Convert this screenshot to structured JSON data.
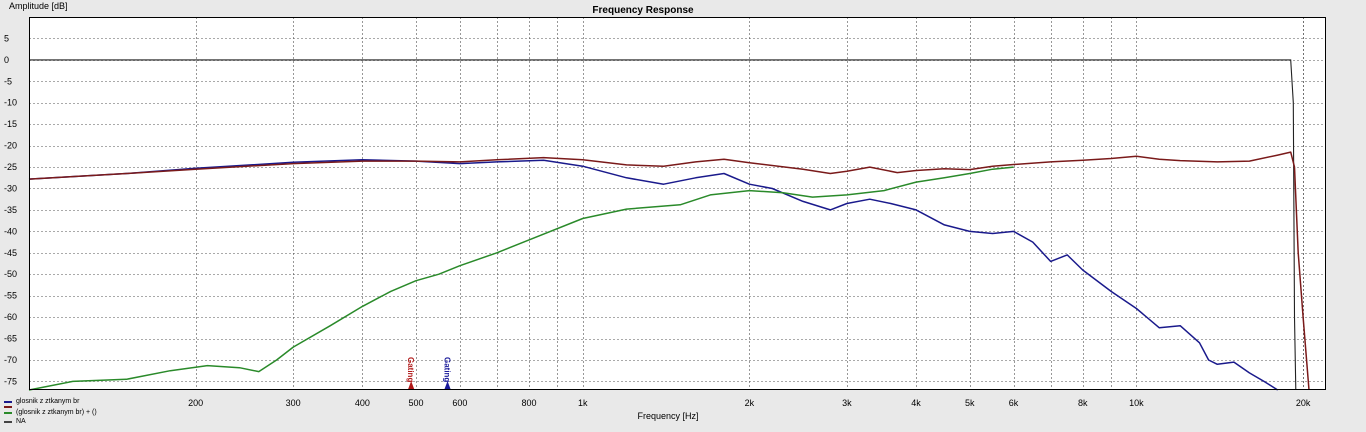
{
  "chart_data": {
    "type": "line",
    "title": "Frequency Response",
    "xlabel": "Frequency [Hz]",
    "ylabel": "Amplitude [dB]",
    "x_scale": "log",
    "xlim": [
      100,
      22000
    ],
    "ylim": [
      -77,
      10
    ],
    "x_ticks": [
      {
        "value": 200,
        "label": "200"
      },
      {
        "value": 300,
        "label": "300"
      },
      {
        "value": 400,
        "label": "400"
      },
      {
        "value": 500,
        "label": "500"
      },
      {
        "value": 600,
        "label": "600"
      },
      {
        "value": 800,
        "label": "800"
      },
      {
        "value": 1000,
        "label": "1k"
      },
      {
        "value": 2000,
        "label": "2k"
      },
      {
        "value": 3000,
        "label": "3k"
      },
      {
        "value": 4000,
        "label": "4k"
      },
      {
        "value": 5000,
        "label": "5k"
      },
      {
        "value": 6000,
        "label": "6k"
      },
      {
        "value": 8000,
        "label": "8k"
      },
      {
        "value": 10000,
        "label": "10k"
      },
      {
        "value": 20000,
        "label": "20k"
      }
    ],
    "y_ticks": [
      5,
      0,
      -5,
      -10,
      -15,
      -20,
      -25,
      -30,
      -35,
      -40,
      -45,
      -50,
      -55,
      -60,
      -65,
      -70,
      -75
    ],
    "grid": true,
    "legend_position": "bottom-left",
    "markers": [
      {
        "label": "Gating",
        "x": 490,
        "color": "#b01818"
      },
      {
        "label": "Gating",
        "x": 570,
        "color": "#1a1a9a"
      }
    ],
    "series": [
      {
        "name": "glosnik z ztkanym br",
        "color": "#1a1a8c",
        "points": [
          [
            100,
            -27.8
          ],
          [
            150,
            -26.5
          ],
          [
            200,
            -25.3
          ],
          [
            300,
            -23.9
          ],
          [
            400,
            -23.3
          ],
          [
            500,
            -23.6
          ],
          [
            600,
            -24.2
          ],
          [
            700,
            -23.8
          ],
          [
            850,
            -23.4
          ],
          [
            1000,
            -24.8
          ],
          [
            1200,
            -27.5
          ],
          [
            1400,
            -29
          ],
          [
            1600,
            -27.5
          ],
          [
            1800,
            -26.5
          ],
          [
            2000,
            -29
          ],
          [
            2200,
            -30
          ],
          [
            2500,
            -33
          ],
          [
            2800,
            -35
          ],
          [
            3000,
            -33.5
          ],
          [
            3300,
            -32.5
          ],
          [
            3600,
            -33.5
          ],
          [
            4000,
            -35
          ],
          [
            4500,
            -38.5
          ],
          [
            5000,
            -40
          ],
          [
            5500,
            -40.5
          ],
          [
            6000,
            -40
          ],
          [
            6500,
            -42.5
          ],
          [
            7000,
            -47
          ],
          [
            7500,
            -45.5
          ],
          [
            8000,
            -49
          ],
          [
            9000,
            -54
          ],
          [
            10000,
            -58
          ],
          [
            11000,
            -62.5
          ],
          [
            12000,
            -62
          ],
          [
            13000,
            -66
          ],
          [
            13500,
            -70
          ],
          [
            14000,
            -71
          ],
          [
            15000,
            -70.5
          ],
          [
            16000,
            -73
          ],
          [
            17000,
            -75
          ],
          [
            18000,
            -77
          ]
        ]
      },
      {
        "name": "",
        "color": "#7a1a1a",
        "points": [
          [
            100,
            -27.8
          ],
          [
            150,
            -26.5
          ],
          [
            200,
            -25.5
          ],
          [
            300,
            -24.2
          ],
          [
            400,
            -23.6
          ],
          [
            500,
            -23.6
          ],
          [
            600,
            -23.8
          ],
          [
            700,
            -23.3
          ],
          [
            850,
            -22.8
          ],
          [
            1000,
            -23.3
          ],
          [
            1200,
            -24.5
          ],
          [
            1400,
            -24.8
          ],
          [
            1600,
            -23.8
          ],
          [
            1800,
            -23.2
          ],
          [
            2000,
            -24
          ],
          [
            2500,
            -25.5
          ],
          [
            2800,
            -26.5
          ],
          [
            3000,
            -26
          ],
          [
            3300,
            -25
          ],
          [
            3700,
            -26.3
          ],
          [
            4000,
            -25.8
          ],
          [
            4500,
            -25.4
          ],
          [
            5000,
            -25.6
          ],
          [
            5500,
            -24.8
          ],
          [
            6000,
            -24.4
          ],
          [
            7000,
            -23.8
          ],
          [
            8000,
            -23.4
          ],
          [
            9000,
            -23
          ],
          [
            10000,
            -22.5
          ],
          [
            11000,
            -23.2
          ],
          [
            12000,
            -23.5
          ],
          [
            14000,
            -23.8
          ],
          [
            16000,
            -23.6
          ],
          [
            18000,
            -22.2
          ],
          [
            19000,
            -21.5
          ],
          [
            19300,
            -25
          ],
          [
            19600,
            -45
          ],
          [
            20000,
            -60
          ],
          [
            20500,
            -77
          ]
        ]
      },
      {
        "name": "(glosnik z ztkanym br) + ()",
        "color": "#2a8a2a",
        "points": [
          [
            100,
            -77
          ],
          [
            120,
            -75
          ],
          [
            150,
            -74.5
          ],
          [
            180,
            -72.5
          ],
          [
            210,
            -71.3
          ],
          [
            240,
            -71.8
          ],
          [
            260,
            -72.7
          ],
          [
            280,
            -70
          ],
          [
            300,
            -67
          ],
          [
            350,
            -62
          ],
          [
            400,
            -57.5
          ],
          [
            450,
            -54
          ],
          [
            500,
            -51.5
          ],
          [
            550,
            -50
          ],
          [
            600,
            -48
          ],
          [
            700,
            -45
          ],
          [
            800,
            -42
          ],
          [
            1000,
            -37
          ],
          [
            1200,
            -34.8
          ],
          [
            1500,
            -33.8
          ],
          [
            1700,
            -31.5
          ],
          [
            2000,
            -30.5
          ],
          [
            2300,
            -31
          ],
          [
            2600,
            -32
          ],
          [
            3000,
            -31.5
          ],
          [
            3500,
            -30.5
          ],
          [
            4000,
            -28.5
          ],
          [
            4500,
            -27.5
          ],
          [
            5000,
            -26.5
          ],
          [
            5500,
            -25.5
          ],
          [
            6000,
            -25
          ]
        ]
      }
    ]
  },
  "legend": [
    {
      "label": "glosnik z ztkanym br",
      "color": "#1a1a8c"
    },
    {
      "label": "",
      "color": "#7a1a1a"
    },
    {
      "label": "(glosnik z ztkanym br) + ()",
      "color": "#2a8a2a"
    },
    {
      "label": "NA",
      "color": "#444444"
    }
  ]
}
